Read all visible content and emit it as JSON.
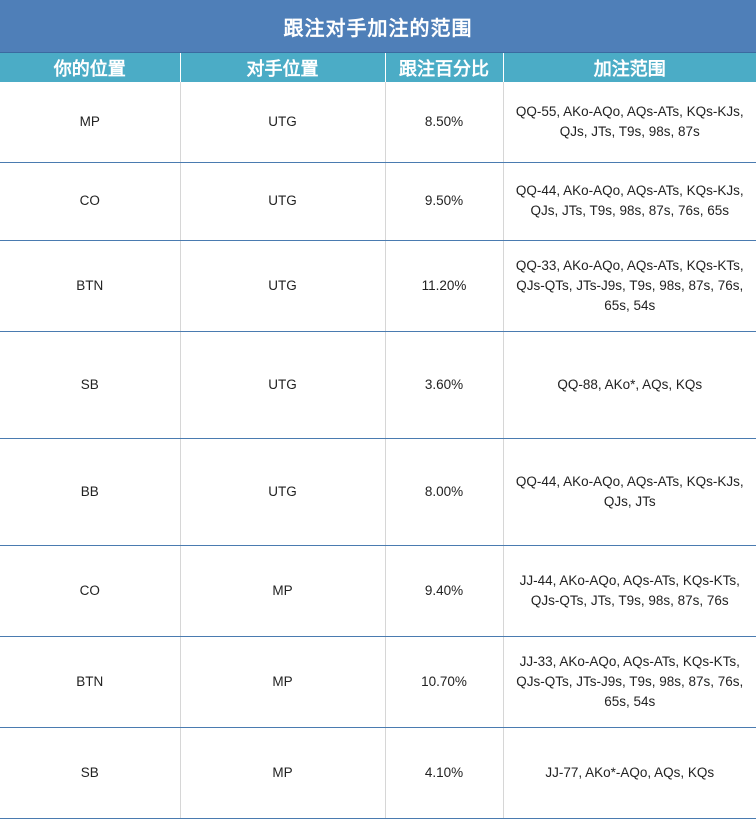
{
  "title": "跟注对手加注的范围",
  "headers": [
    "你的位置",
    "对手位置",
    "跟注百分比",
    "加注范围"
  ],
  "rows": [
    {
      "your_pos": "MP",
      "opp_pos": "UTG",
      "pct": "8.50%",
      "range": "QQ-55, AKo-AQo, AQs-ATs, KQs-KJs, QJs, JTs, T9s, 98s, 87s"
    },
    {
      "your_pos": "CO",
      "opp_pos": "UTG",
      "pct": "9.50%",
      "range": "QQ-44, AKo-AQo, AQs-ATs, KQs-KJs, QJs, JTs, T9s, 98s, 87s, 76s, 65s"
    },
    {
      "your_pos": "BTN",
      "opp_pos": "UTG",
      "pct": "11.20%",
      "range": "QQ-33, AKo-AQo, AQs-ATs, KQs-KTs, QJs-QTs, JTs-J9s, T9s, 98s, 87s, 76s, 65s, 54s"
    },
    {
      "your_pos": "SB",
      "opp_pos": "UTG",
      "pct": "3.60%",
      "range": "QQ-88, AKo*, AQs, KQs"
    },
    {
      "your_pos": "BB",
      "opp_pos": "UTG",
      "pct": "8.00%",
      "range": "QQ-44, AKo-AQo, AQs-ATs, KQs-KJs, QJs, JTs"
    },
    {
      "your_pos": "CO",
      "opp_pos": "MP",
      "pct": "9.40%",
      "range": "JJ-44, AKo-AQo, AQs-ATs, KQs-KTs, QJs-QTs, JTs, T9s, 98s, 87s, 76s"
    },
    {
      "your_pos": "BTN",
      "opp_pos": "MP",
      "pct": "10.70%",
      "range": "JJ-33, AKo-AQo, AQs-ATs, KQs-KTs, QJs-QTs, JTs-J9s, T9s, 98s, 87s, 76s, 65s, 54s"
    },
    {
      "your_pos": "SB",
      "opp_pos": "MP",
      "pct": "4.10%",
      "range": "JJ-77, AKo*-AQo, AQs, KQs"
    }
  ]
}
